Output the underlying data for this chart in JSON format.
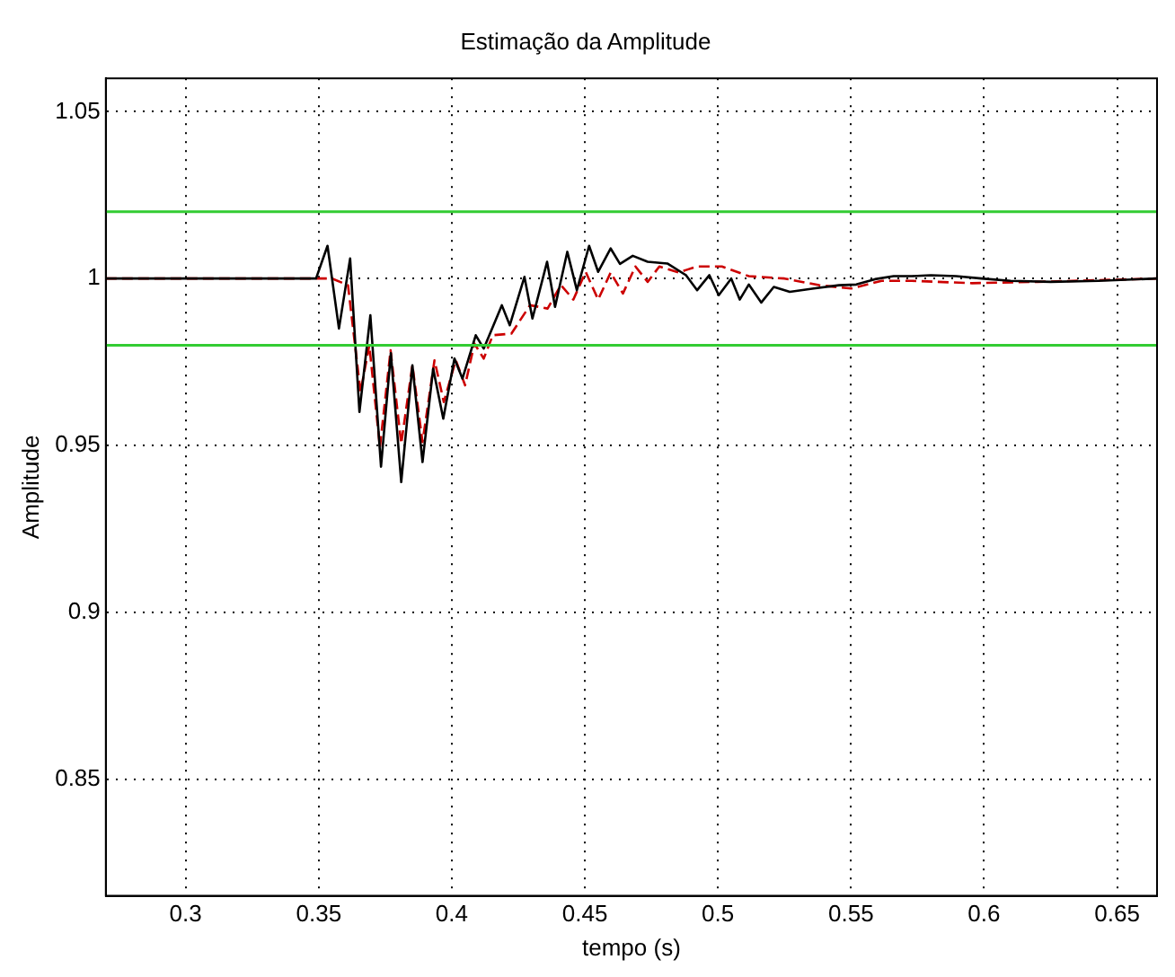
{
  "chart_data": {
    "type": "line",
    "title": "Estimação da Amplitude",
    "xlabel": "tempo (s)",
    "ylabel": "Amplitude",
    "xlim": [
      0.27,
      0.665
    ],
    "xticks": [
      0.3,
      0.35,
      0.4,
      0.45,
      0.5,
      0.55,
      0.6,
      0.65
    ],
    "ylim": [
      0.815,
      1.06
    ],
    "yticks": [
      0.85,
      0.9,
      0.95,
      1,
      1.05
    ],
    "grid": true,
    "legend": false,
    "marker": "none",
    "series": [
      {
        "color": "#000000",
        "line_style": "solid",
        "x": [
          0.27,
          0.349,
          0.3533,
          0.3576,
          0.3618,
          0.3653,
          0.3694,
          0.3734,
          0.3771,
          0.381,
          0.3852,
          0.389,
          0.393,
          0.3968,
          0.401,
          0.404,
          0.409,
          0.412,
          0.4188,
          0.4218,
          0.4273,
          0.4303,
          0.4358,
          0.4388,
          0.4434,
          0.447,
          0.4516,
          0.455,
          0.4597,
          0.4632,
          0.468,
          0.4736,
          0.481,
          0.488,
          0.4922,
          0.4968,
          0.5003,
          0.505,
          0.5082,
          0.5116,
          0.5163,
          0.521,
          0.527,
          0.536,
          0.5455,
          0.552,
          0.559,
          0.566,
          0.573,
          0.58,
          0.5895,
          0.599,
          0.61,
          0.625,
          0.643,
          0.665
        ],
        "values": [
          1.0,
          1.0,
          1.0098,
          0.985,
          1.006,
          0.96,
          0.989,
          0.9436,
          0.9776,
          0.939,
          0.974,
          0.945,
          0.973,
          0.958,
          0.976,
          0.97,
          0.983,
          0.979,
          0.992,
          0.986,
          1.0005,
          0.988,
          1.005,
          0.9915,
          1.008,
          0.9965,
          1.0098,
          1.002,
          1.009,
          1.0044,
          1.0068,
          1.005,
          1.0045,
          1.001,
          0.9965,
          1.001,
          0.995,
          1.0,
          0.9937,
          0.9982,
          0.9928,
          0.9975,
          0.996,
          0.997,
          0.998,
          0.9982,
          0.9998,
          1.0007,
          1.0007,
          1.001,
          1.0007,
          1.0,
          0.9993,
          0.999,
          0.9993,
          1.0
        ]
      },
      {
        "color": "#cc0000",
        "line_style": "dashed",
        "x": [
          0.27,
          0.349,
          0.355,
          0.361,
          0.3657,
          0.369,
          0.373,
          0.377,
          0.381,
          0.3852,
          0.389,
          0.3935,
          0.397,
          0.4015,
          0.405,
          0.4085,
          0.412,
          0.4154,
          0.4224,
          0.4294,
          0.436,
          0.441,
          0.4457,
          0.4503,
          0.455,
          0.4597,
          0.4643,
          0.469,
          0.4736,
          0.478,
          0.4852,
          0.492,
          0.5015,
          0.5116,
          0.525,
          0.538,
          0.55,
          0.5615,
          0.573,
          0.5955,
          0.62,
          0.665
        ],
        "values": [
          1.0,
          1.0,
          1.0,
          0.998,
          0.966,
          0.98,
          0.9495,
          0.9785,
          0.9505,
          0.974,
          0.951,
          0.9755,
          0.963,
          0.9755,
          0.968,
          0.9805,
          0.976,
          0.983,
          0.9835,
          0.992,
          0.991,
          0.998,
          0.9937,
          1.002,
          0.9937,
          1.0018,
          0.9955,
          1.0036,
          0.999,
          1.0036,
          1.0018,
          1.0036,
          1.0036,
          1.0007,
          1.0,
          0.998,
          0.997,
          0.9993,
          0.9993,
          0.9986,
          0.999,
          1.0
        ]
      }
    ],
    "ref_lines": [
      {
        "axis": "y",
        "value": 1.02,
        "color": "#33cc33"
      },
      {
        "axis": "y",
        "value": 0.98,
        "color": "#33cc33"
      }
    ]
  }
}
